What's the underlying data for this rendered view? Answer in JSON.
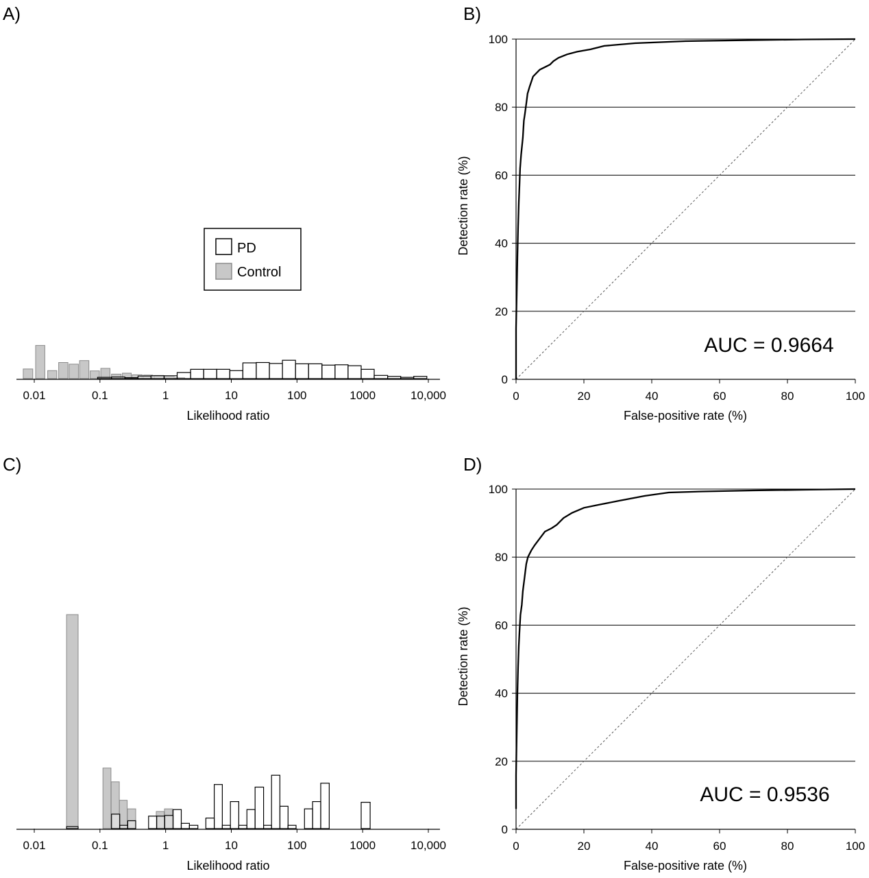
{
  "colors": {
    "pd_fill": "#ffffff",
    "pd_stroke": "#000000",
    "control_fill": "#c8c8c8",
    "control_stroke": "#8a8a8a",
    "axis": "#000000",
    "diagonal": "#555555"
  },
  "legend": {
    "pd": "PD",
    "control": "Control"
  },
  "chart_data": [
    {
      "panel": "A)",
      "type": "bar",
      "xscale": "log",
      "xlabel": "Likelihood ratio",
      "ylabel": "",
      "xticks": [
        {
          "value": 0.01,
          "label": "0.01"
        },
        {
          "value": 0.1,
          "label": "0.1"
        },
        {
          "value": 1,
          "label": "1"
        },
        {
          "value": 10,
          "label": "10"
        },
        {
          "value": 100,
          "label": "100"
        },
        {
          "value": 1000,
          "label": "1000"
        },
        {
          "value": 10000,
          "label": "10,000"
        }
      ],
      "legend_placement": "center",
      "series": [
        {
          "name": "Control",
          "bars": [
            {
              "lo": 0.0068,
              "hi": 0.0095,
              "value": 3.0
            },
            {
              "lo": 0.0105,
              "hi": 0.0145,
              "value": 10.3
            },
            {
              "lo": 0.016,
              "hi": 0.022,
              "value": 2.5
            },
            {
              "lo": 0.0235,
              "hi": 0.0325,
              "value": 5.0
            },
            {
              "lo": 0.034,
              "hi": 0.047,
              "value": 4.5
            },
            {
              "lo": 0.049,
              "hi": 0.068,
              "value": 5.6
            },
            {
              "lo": 0.071,
              "hi": 0.098,
              "value": 2.4
            },
            {
              "lo": 0.103,
              "hi": 0.142,
              "value": 3.2
            },
            {
              "lo": 0.15,
              "hi": 0.21,
              "value": 1.4
            },
            {
              "lo": 0.22,
              "hi": 0.3,
              "value": 1.7
            },
            {
              "lo": 0.31,
              "hi": 0.44,
              "value": 1.2
            },
            {
              "lo": 0.46,
              "hi": 0.64,
              "value": 1.1
            },
            {
              "lo": 0.67,
              "hi": 0.93,
              "value": 1.0
            },
            {
              "lo": 0.97,
              "hi": 1.35,
              "value": 0.6
            },
            {
              "lo": 1.4,
              "hi": 1.95,
              "value": 0.3
            }
          ]
        },
        {
          "name": "PD",
          "bars": [
            {
              "lo": 0.092,
              "hi": 0.15,
              "value": 0.4
            },
            {
              "lo": 0.15,
              "hi": 0.24,
              "value": 0.5
            },
            {
              "lo": 0.24,
              "hi": 0.38,
              "value": 0.3
            },
            {
              "lo": 0.38,
              "hi": 0.6,
              "value": 0.8
            },
            {
              "lo": 0.6,
              "hi": 0.95,
              "value": 0.9
            },
            {
              "lo": 0.95,
              "hi": 1.5,
              "value": 0.9
            },
            {
              "lo": 1.5,
              "hi": 2.4,
              "value": 1.9
            },
            {
              "lo": 2.4,
              "hi": 3.8,
              "value": 2.9
            },
            {
              "lo": 3.8,
              "hi": 6,
              "value": 2.9
            },
            {
              "lo": 6,
              "hi": 9.5,
              "value": 2.9
            },
            {
              "lo": 9.5,
              "hi": 15,
              "value": 2.5
            },
            {
              "lo": 15,
              "hi": 24,
              "value": 4.9
            },
            {
              "lo": 24,
              "hi": 38,
              "value": 5.0
            },
            {
              "lo": 38,
              "hi": 60,
              "value": 4.7
            },
            {
              "lo": 60,
              "hi": 95,
              "value": 5.7
            },
            {
              "lo": 95,
              "hi": 150,
              "value": 4.6
            },
            {
              "lo": 150,
              "hi": 240,
              "value": 4.6
            },
            {
              "lo": 240,
              "hi": 380,
              "value": 4.2
            },
            {
              "lo": 380,
              "hi": 600,
              "value": 4.3
            },
            {
              "lo": 600,
              "hi": 950,
              "value": 4.0
            },
            {
              "lo": 950,
              "hi": 1500,
              "value": 2.9
            },
            {
              "lo": 1500,
              "hi": 2400,
              "value": 1.0
            },
            {
              "lo": 2400,
              "hi": 3800,
              "value": 0.7
            },
            {
              "lo": 3800,
              "hi": 6000,
              "value": 0.4
            },
            {
              "lo": 6000,
              "hi": 9500,
              "value": 0.7
            }
          ]
        }
      ]
    },
    {
      "panel": "B)",
      "type": "line",
      "xlabel": "False-positive rate (%)",
      "ylabel": "Detection rate (%)",
      "xlim": [
        0,
        100
      ],
      "ylim": [
        0,
        100
      ],
      "ticks": [
        0,
        20,
        40,
        60,
        80,
        100
      ],
      "grid": "horizontal",
      "annotation": "AUC = 0.9664",
      "reference_line": [
        [
          0,
          0
        ],
        [
          100,
          100
        ]
      ],
      "series": [
        {
          "x": [
            0,
            0,
            0.2,
            0.4,
            0.6,
            0.8,
            1.0,
            1.2,
            1.5,
            2.0,
            2.3,
            2.6,
            3.0,
            3.4,
            4.0,
            5.0,
            6.0,
            7.0,
            9.0,
            10.0,
            11.0,
            12.5,
            15.0,
            18.0,
            22.0,
            26.0,
            35.0,
            50.0,
            70.0,
            85.0,
            100.0
          ],
          "y": [
            0,
            15,
            25,
            36,
            45,
            52,
            57,
            62,
            66,
            71,
            76,
            78,
            81,
            84,
            86,
            89,
            90,
            91,
            92,
            92.5,
            93.5,
            94.5,
            95.5,
            96.3,
            97,
            98,
            98.8,
            99.4,
            99.7,
            99.9,
            100
          ]
        }
      ]
    },
    {
      "panel": "C)",
      "type": "bar",
      "xscale": "log",
      "xlabel": "Likelihood ratio",
      "ylabel": "",
      "xticks": [
        {
          "value": 0.01,
          "label": "0.01"
        },
        {
          "value": 0.1,
          "label": "0.1"
        },
        {
          "value": 1,
          "label": "1"
        },
        {
          "value": 10,
          "label": "10"
        },
        {
          "value": 100,
          "label": "100"
        },
        {
          "value": 1000,
          "label": "1000"
        },
        {
          "value": 10000,
          "label": "10,000"
        }
      ],
      "series": [
        {
          "name": "Control",
          "bars": [
            {
              "lo": 0.031,
              "hi": 0.0465,
              "value": 32.5
            },
            {
              "lo": 0.111,
              "hi": 0.147,
              "value": 9.2
            },
            {
              "lo": 0.148,
              "hi": 0.197,
              "value": 7.1
            },
            {
              "lo": 0.198,
              "hi": 0.26,
              "value": 4.3
            },
            {
              "lo": 0.262,
              "hi": 0.35,
              "value": 3.0
            },
            {
              "lo": 0.72,
              "hi": 0.95,
              "value": 2.6
            },
            {
              "lo": 0.96,
              "hi": 1.27,
              "value": 3.0
            }
          ]
        },
        {
          "name": "PD",
          "bars": [
            {
              "lo": 0.031,
              "hi": 0.0465,
              "value": 0.3
            },
            {
              "lo": 0.15,
              "hi": 0.2,
              "value": 2.2
            },
            {
              "lo": 0.2,
              "hi": 0.265,
              "value": 0.5
            },
            {
              "lo": 0.265,
              "hi": 0.35,
              "value": 1.2
            },
            {
              "lo": 0.55,
              "hi": 0.73,
              "value": 1.9
            },
            {
              "lo": 0.73,
              "hi": 0.97,
              "value": 1.9
            },
            {
              "lo": 0.97,
              "hi": 1.3,
              "value": 2.0
            },
            {
              "lo": 1.3,
              "hi": 1.73,
              "value": 2.9
            },
            {
              "lo": 1.73,
              "hi": 2.3,
              "value": 0.8
            },
            {
              "lo": 2.3,
              "hi": 3.1,
              "value": 0.5
            },
            {
              "lo": 4.1,
              "hi": 5.5,
              "value": 1.6
            },
            {
              "lo": 5.5,
              "hi": 7.3,
              "value": 6.7
            },
            {
              "lo": 7.3,
              "hi": 9.7,
              "value": 0.5
            },
            {
              "lo": 9.7,
              "hi": 13,
              "value": 4.1
            },
            {
              "lo": 13,
              "hi": 17.3,
              "value": 0.5
            },
            {
              "lo": 17.3,
              "hi": 23,
              "value": 2.9
            },
            {
              "lo": 23,
              "hi": 31,
              "value": 6.3
            },
            {
              "lo": 31,
              "hi": 41,
              "value": 0.5
            },
            {
              "lo": 41,
              "hi": 55,
              "value": 8.1
            },
            {
              "lo": 55,
              "hi": 73,
              "value": 3.4
            },
            {
              "lo": 73,
              "hi": 97,
              "value": 0.5
            },
            {
              "lo": 130,
              "hi": 173,
              "value": 3.0
            },
            {
              "lo": 173,
              "hi": 230,
              "value": 4.1
            },
            {
              "lo": 230,
              "hi": 310,
              "value": 6.9
            },
            {
              "lo": 950,
              "hi": 1300,
              "value": 4.0
            }
          ]
        }
      ]
    },
    {
      "panel": "D)",
      "type": "line",
      "xlabel": "False-positive rate (%)",
      "ylabel": "Detection rate (%)",
      "xlim": [
        0,
        100
      ],
      "ylim": [
        0,
        100
      ],
      "ticks": [
        0,
        20,
        40,
        60,
        80,
        100
      ],
      "grid": "horizontal",
      "annotation": "AUC = 0.9536",
      "reference_line": [
        [
          0,
          0
        ],
        [
          100,
          100
        ]
      ],
      "series": [
        {
          "x": [
            0,
            0,
            0.2,
            0.4,
            0.6,
            0.8,
            1.0,
            1.3,
            1.7,
            2.0,
            2.5,
            3.0,
            3.5,
            4.5,
            5.5,
            7.0,
            8.5,
            10.5,
            12.0,
            14.0,
            16.5,
            20.0,
            25.0,
            30.0,
            38.0,
            45.0,
            55.0,
            70.0,
            85.0,
            100.0
          ],
          "y": [
            6,
            16,
            28,
            40,
            48,
            54,
            58,
            63,
            66,
            70,
            74,
            78,
            80,
            82,
            83.5,
            85.5,
            87.5,
            88.5,
            89.5,
            91.5,
            93,
            94.5,
            95.5,
            96.5,
            98,
            99,
            99.3,
            99.6,
            99.8,
            100
          ]
        }
      ]
    }
  ],
  "panel_labels": [
    "A)",
    "B)",
    "C)",
    "D)"
  ]
}
